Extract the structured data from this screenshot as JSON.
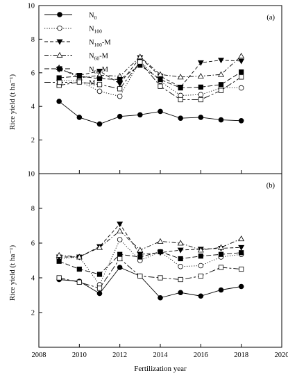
{
  "chart_data": [
    {
      "type": "line",
      "panel_label": "(a)",
      "ylabel": "Rice yield (t ha⁻¹)",
      "xlabel": "",
      "xlim": [
        2008,
        2020
      ],
      "ylim": [
        0,
        10
      ],
      "yticks": [
        "2",
        "4",
        "6",
        "8",
        "10"
      ],
      "grid": false,
      "legend_position": "top-left",
      "x": [
        2009,
        2010,
        2011,
        2012,
        2013,
        2014,
        2015,
        2016,
        2017,
        2018
      ],
      "series": [
        {
          "name": "N0",
          "style": "solid",
          "marker": "circle-filled",
          "values": [
            4.3,
            3.35,
            2.95,
            3.4,
            3.5,
            3.7,
            3.3,
            3.35,
            3.2,
            3.15
          ]
        },
        {
          "name": "N100",
          "style": "dotted",
          "marker": "circle-open",
          "values": [
            5.55,
            5.5,
            4.9,
            4.6,
            6.7,
            5.5,
            4.65,
            4.7,
            5.1,
            5.1
          ]
        },
        {
          "name": "N100-M",
          "style": "dash",
          "marker": "triangle-down-filled",
          "values": [
            6.2,
            5.85,
            6.1,
            5.35,
            6.9,
            5.8,
            5.15,
            6.6,
            6.75,
            6.7
          ]
        },
        {
          "name": "N60-M",
          "style": "dashdot",
          "marker": "triangle-up-open",
          "values": [
            6.3,
            5.7,
            5.85,
            5.8,
            6.95,
            5.9,
            5.75,
            5.8,
            5.9,
            7.0
          ]
        },
        {
          "name": "N60-M",
          "style": "longdash",
          "marker": "square-filled",
          "values": [
            5.7,
            5.8,
            5.65,
            5.6,
            6.45,
            5.6,
            5.1,
            5.15,
            5.3,
            6.05
          ]
        },
        {
          "name": "M",
          "style": "longdash-short",
          "marker": "square-open",
          "values": [
            5.25,
            5.45,
            5.3,
            5.05,
            6.65,
            5.2,
            4.4,
            4.4,
            4.95,
            5.75
          ]
        }
      ]
    },
    {
      "type": "line",
      "panel_label": "(b)",
      "ylabel": "Rice yield (t ha⁻¹)",
      "xlabel": "Fertilization year",
      "xlim": [
        2008,
        2020
      ],
      "ylim": [
        0,
        10
      ],
      "yticks": [
        "2",
        "4",
        "6",
        "8",
        "10"
      ],
      "xticks": [
        "2008",
        "2010",
        "2012",
        "2014",
        "2016",
        "2018",
        "2020"
      ],
      "grid": false,
      "x": [
        2009,
        2010,
        2011,
        2012,
        2013,
        2014,
        2015,
        2016,
        2017,
        2018
      ],
      "series": [
        {
          "name": "N0",
          "style": "solid",
          "marker": "circle-filled",
          "values": [
            3.9,
            3.8,
            3.1,
            4.6,
            4.1,
            2.85,
            3.15,
            2.95,
            3.3,
            3.5
          ]
        },
        {
          "name": "N100",
          "style": "dotted",
          "marker": "circle-open",
          "values": [
            5.1,
            5.2,
            3.6,
            6.2,
            5.0,
            5.5,
            4.65,
            4.7,
            5.2,
            5.35
          ]
        },
        {
          "name": "N100-M",
          "style": "dash",
          "marker": "triangle-down-filled",
          "values": [
            5.2,
            5.2,
            5.8,
            7.1,
            5.35,
            5.45,
            5.6,
            5.65,
            5.7,
            5.75
          ]
        },
        {
          "name": "N60-M",
          "style": "dashdot",
          "marker": "triangle-up-open",
          "values": [
            5.3,
            5.2,
            5.75,
            6.7,
            5.6,
            6.1,
            6.0,
            5.6,
            5.75,
            6.25
          ]
        },
        {
          "name": "N60-M",
          "style": "longdash",
          "marker": "square-filled",
          "values": [
            4.95,
            4.5,
            4.2,
            5.35,
            5.2,
            5.5,
            5.1,
            5.25,
            5.35,
            5.45
          ]
        },
        {
          "name": "M",
          "style": "longdash-short",
          "marker": "square-open",
          "values": [
            4.0,
            3.75,
            3.4,
            5.1,
            4.1,
            4.0,
            3.9,
            4.1,
            4.6,
            4.5
          ]
        }
      ]
    }
  ],
  "legend": {
    "items": [
      {
        "base": "N",
        "sub": "0",
        "suffix": ""
      },
      {
        "base": "N",
        "sub": "100",
        "suffix": ""
      },
      {
        "base": "N",
        "sub": "100",
        "suffix": "-M"
      },
      {
        "base": "N",
        "sub": "60",
        "suffix": "-M"
      },
      {
        "base": "N",
        "sub": "60",
        "suffix": "-M"
      },
      {
        "base": "M",
        "sub": "",
        "suffix": ""
      }
    ]
  }
}
